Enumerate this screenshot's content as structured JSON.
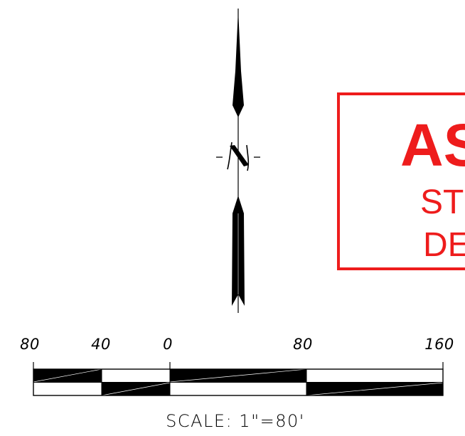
{
  "north_arrow": {
    "letter": "N"
  },
  "stamp": {
    "color": "#ee1c1c",
    "title": "AS",
    "line1": "ST",
    "line2": "DE"
  },
  "scale_bar": {
    "tick_labels": [
      "80",
      "40",
      "0",
      "80",
      "160"
    ],
    "caption": "SCALE:  1\"=80'"
  }
}
